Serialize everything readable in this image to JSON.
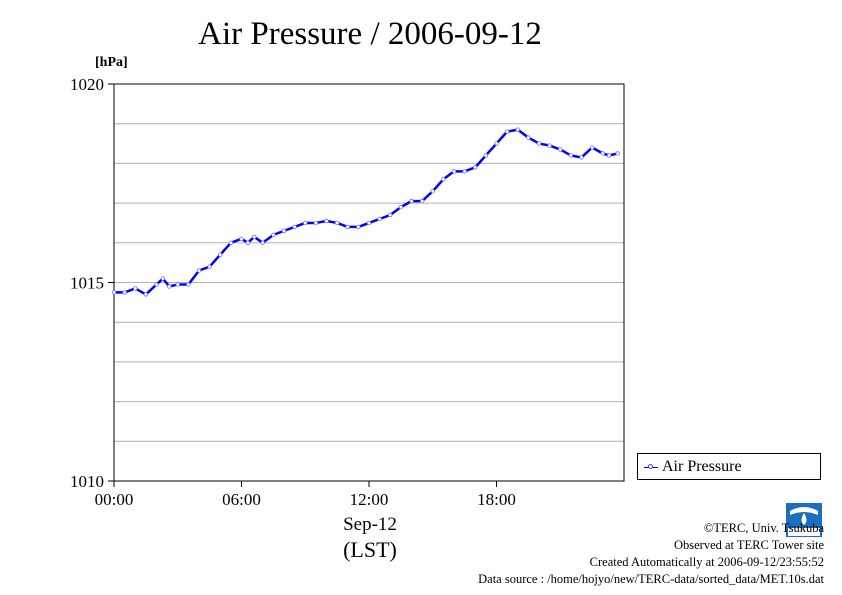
{
  "chart_data": {
    "type": "line",
    "title": "Air Pressure / 2006-09-12",
    "ylabel": "[hPa]",
    "xlabel_date": "Sep-12",
    "xlabel_tz": "(LST)",
    "ylim": [
      1010,
      1020
    ],
    "xlim": [
      0,
      24
    ],
    "y_ticks": [
      1010,
      1015,
      1020
    ],
    "y_minor_step": 1,
    "x_ticks": [
      {
        "hour": 0,
        "label": "00:00"
      },
      {
        "hour": 6,
        "label": "06:00"
      },
      {
        "hour": 12,
        "label": "12:00"
      },
      {
        "hour": 18,
        "label": "18:00"
      }
    ],
    "grid": true,
    "legend": "right",
    "series": [
      {
        "name": "Air Pressure",
        "color": "#0000ff",
        "x": [
          0,
          0.5,
          1,
          1.5,
          2,
          2.3,
          2.6,
          3,
          3.5,
          4,
          4.5,
          5,
          5.5,
          6,
          6.3,
          6.6,
          7,
          7.5,
          8,
          8.5,
          9,
          9.5,
          10,
          10.5,
          11,
          11.5,
          12,
          12.5,
          13,
          13.5,
          14,
          14.5,
          15,
          15.5,
          16,
          16.5,
          17,
          17.5,
          18,
          18.5,
          19,
          19.5,
          20,
          20.5,
          21,
          21.5,
          22,
          22.5,
          23,
          23.3,
          23.7
        ],
        "values": [
          1014.75,
          1014.75,
          1014.85,
          1014.7,
          1014.95,
          1015.1,
          1014.9,
          1014.95,
          1014.95,
          1015.3,
          1015.4,
          1015.7,
          1016.0,
          1016.1,
          1016.0,
          1016.15,
          1016.0,
          1016.2,
          1016.3,
          1016.4,
          1016.5,
          1016.5,
          1016.55,
          1016.5,
          1016.4,
          1016.4,
          1016.5,
          1016.6,
          1016.7,
          1016.9,
          1017.05,
          1017.05,
          1017.3,
          1017.6,
          1017.8,
          1017.8,
          1017.9,
          1018.2,
          1018.5,
          1018.8,
          1018.85,
          1018.65,
          1018.5,
          1018.45,
          1018.35,
          1018.2,
          1018.15,
          1018.4,
          1018.25,
          1018.2,
          1018.25
        ]
      }
    ]
  },
  "legend_label": "Air Pressure",
  "footer": {
    "copyright": "©TERC, Univ. Tsukuba",
    "observed": "Observed at TERC Tower site",
    "created": "Created Automatically at 2006-09-12/23:55:52",
    "source": "Data source : /home/hojyo/new/TERC-data/sorted_data/MET.10s.dat"
  },
  "logo_text": "TERC"
}
